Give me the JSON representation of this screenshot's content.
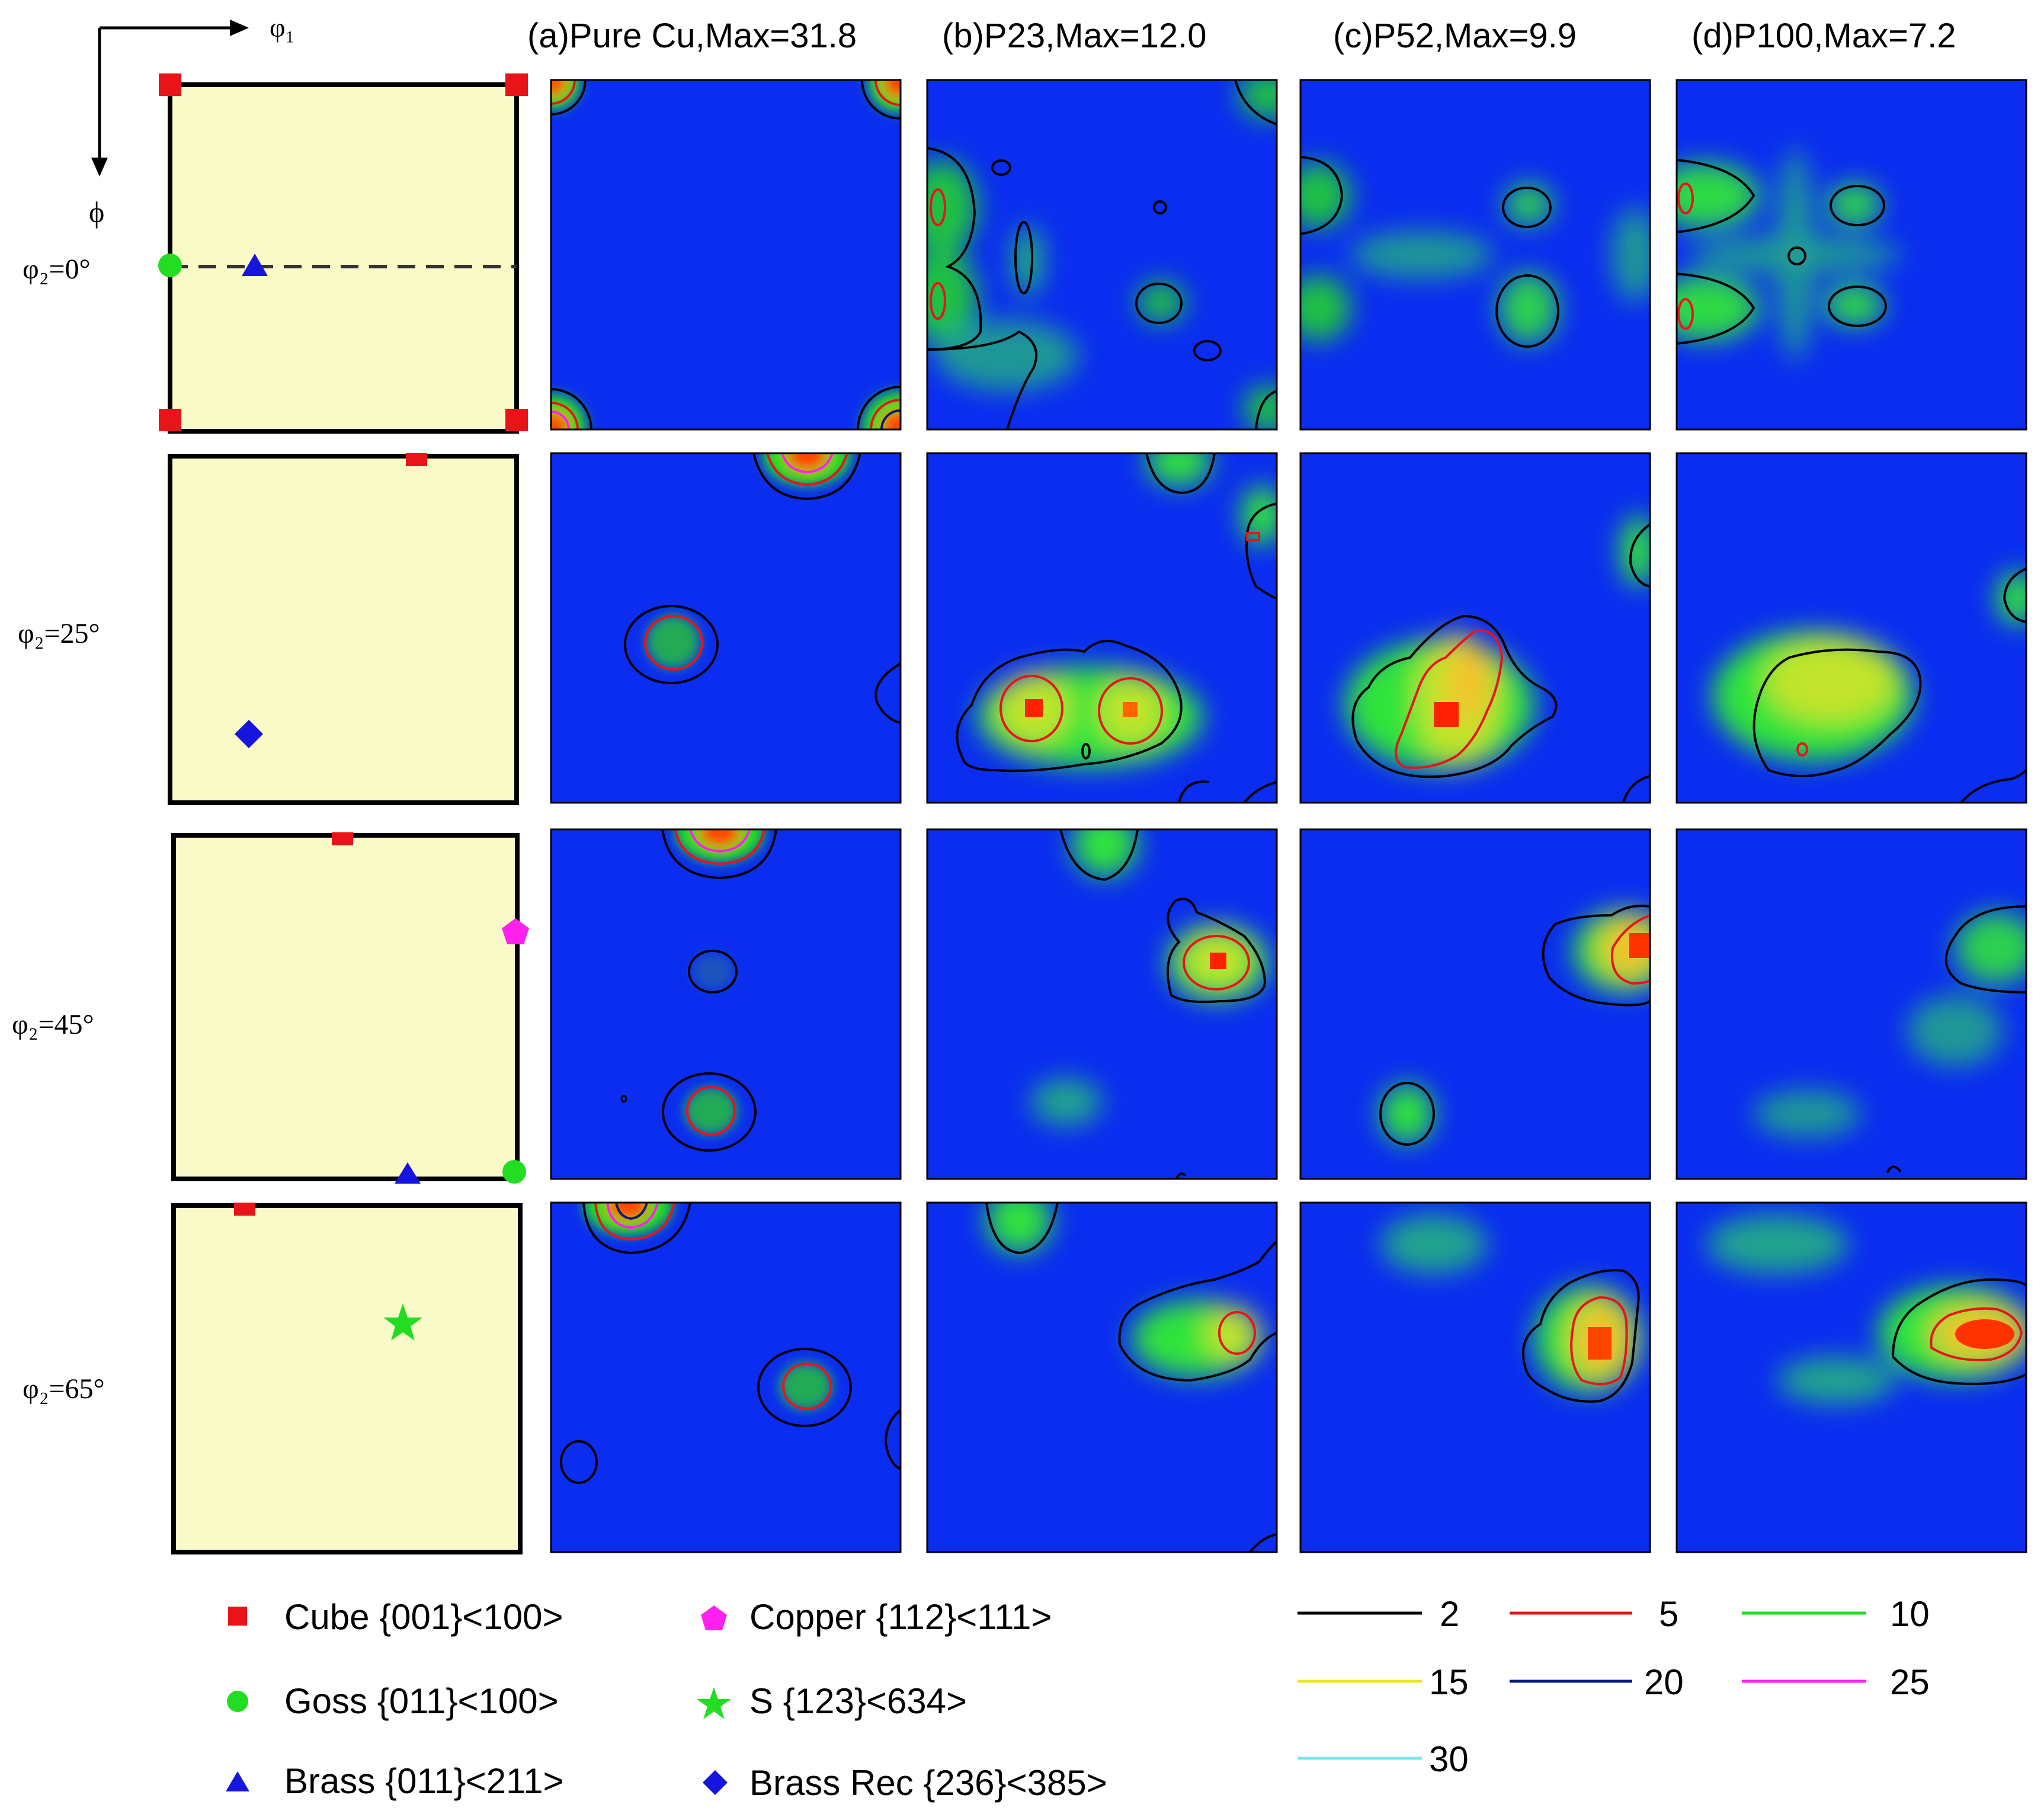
{
  "axes": {
    "phi1": "φ₁",
    "phi": "ϕ"
  },
  "row_labels": [
    {
      "text": "φ₂=0°"
    },
    {
      "text": "φ₂=25°"
    },
    {
      "text": "φ₂=45°"
    },
    {
      "text": "φ₂=65°"
    }
  ],
  "columns": [
    {
      "title": "(a)Pure Cu,Max=31.8"
    },
    {
      "title": "(b)P23,Max=12.0"
    },
    {
      "title": "(c)P52,Max=9.9"
    },
    {
      "title": "(d)P100,Max=7.2"
    }
  ],
  "legend_components": [
    {
      "label": "Cube {001}<100>",
      "symbol": "square",
      "color": "#e8141a"
    },
    {
      "label": "Goss {011}<100>",
      "symbol": "circle",
      "color": "#22dd22"
    },
    {
      "label": "Brass {011}<211>",
      "symbol": "triangle",
      "color": "#1515dd"
    },
    {
      "label": "Copper {112}<111>",
      "symbol": "pentagon",
      "color": "#ff22ee"
    },
    {
      "label": "S {123}<634>",
      "symbol": "star",
      "color": "#22dd22"
    },
    {
      "label": "Brass Rec {236}<385>",
      "symbol": "diamond",
      "color": "#1515dd"
    }
  ],
  "legend_levels": [
    {
      "value": "2",
      "color": "#000000"
    },
    {
      "value": "5",
      "color": "#e8141a"
    },
    {
      "value": "10",
      "color": "#22dd22"
    },
    {
      "value": "15",
      "color": "#e8e822"
    },
    {
      "value": "20",
      "color": "#0a1a7a"
    },
    {
      "value": "25",
      "color": "#ff22ee"
    },
    {
      "value": "30",
      "color": "#77e8ee"
    }
  ],
  "colors": {
    "background_map": "#0b2df0",
    "schematic_fill": "#fafac8"
  }
}
